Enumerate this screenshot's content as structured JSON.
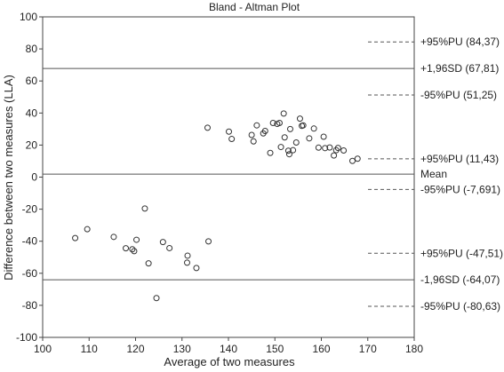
{
  "chart_data": {
    "type": "scatter",
    "title": "Bland - Altman Plot",
    "xlabel": "Average of two measures",
    "ylabel": "Difference between two measures (LLA)",
    "xlim": [
      100,
      180
    ],
    "ylim": [
      -100,
      100
    ],
    "xticks": [
      "100",
      "110",
      "120",
      "130",
      "140",
      "150",
      "160",
      "170",
      "180"
    ],
    "yticks": [
      "-100",
      "-80",
      "-60",
      "-40",
      "-20",
      "0",
      "20",
      "40",
      "60",
      "80",
      "100"
    ],
    "grid": false,
    "reference_lines": [
      {
        "label": "+95%PU (84,37)",
        "y": 84.37,
        "style": "dashed",
        "extent": "right"
      },
      {
        "label": "+1,96SD (67,81)",
        "y": 67.81,
        "style": "solid",
        "extent": "full"
      },
      {
        "label": "-95%PU (51,25)",
        "y": 51.25,
        "style": "dashed",
        "extent": "right"
      },
      {
        "label": "+95%PU (11,43)",
        "y": 11.43,
        "style": "dashed",
        "extent": "right"
      },
      {
        "label": "Mean",
        "y": 1.87,
        "style": "solid",
        "extent": "full"
      },
      {
        "label": "-95%PU (-7,691)",
        "y": -7.691,
        "style": "dashed",
        "extent": "right"
      },
      {
        "label": "+95%PU (-47,51)",
        "y": -47.51,
        "style": "dashed",
        "extent": "right"
      },
      {
        "label": "-1,96SD (-64,07)",
        "y": -64.07,
        "style": "solid",
        "extent": "full"
      },
      {
        "label": "-95%PU (-80,63)",
        "y": -80.63,
        "style": "dashed",
        "extent": "right"
      }
    ],
    "series": [
      {
        "marker": "open-circle",
        "points": [
          [
            107,
            -38
          ],
          [
            109.6,
            -32.5
          ],
          [
            115.3,
            -37.3
          ],
          [
            117.9,
            -44.4
          ],
          [
            119.3,
            -45
          ],
          [
            119.7,
            -46.2
          ],
          [
            120.2,
            -39.1
          ],
          [
            122,
            -19.6
          ],
          [
            122.8,
            -53.8
          ],
          [
            124.5,
            -75.5
          ],
          [
            125.9,
            -40.5
          ],
          [
            127.3,
            -44.3
          ],
          [
            131.1,
            -53.4
          ],
          [
            131.2,
            -49
          ],
          [
            133.1,
            -56.7
          ],
          [
            135.5,
            30.8
          ],
          [
            135.7,
            -40.1
          ],
          [
            140.1,
            28.4
          ],
          [
            140.7,
            23.8
          ],
          [
            145,
            26.3
          ],
          [
            145.4,
            22.3
          ],
          [
            146.1,
            32.3
          ],
          [
            147.5,
            27.3
          ],
          [
            147.9,
            28.8
          ],
          [
            149,
            15.1
          ],
          [
            149.6,
            33.8
          ],
          [
            150.5,
            33.2
          ],
          [
            151,
            33.8
          ],
          [
            151.3,
            18.8
          ],
          [
            151.9,
            39.7
          ],
          [
            152.1,
            24.8
          ],
          [
            152.9,
            16.5
          ],
          [
            153.1,
            14.3
          ],
          [
            153.3,
            30
          ],
          [
            153.9,
            16.8
          ],
          [
            154.6,
            21.6
          ],
          [
            155.4,
            36.5
          ],
          [
            155.8,
            32
          ],
          [
            156.1,
            32.3
          ],
          [
            157.4,
            24.2
          ],
          [
            158.4,
            30.3
          ],
          [
            159.4,
            18.4
          ],
          [
            160.5,
            25.2
          ],
          [
            160.8,
            18.1
          ],
          [
            161.8,
            18.5
          ],
          [
            162.7,
            13.5
          ],
          [
            163.2,
            16.8
          ],
          [
            163.6,
            18.2
          ],
          [
            164.8,
            16.6
          ],
          [
            166.7,
            10.1
          ],
          [
            167.8,
            11.5
          ]
        ]
      }
    ]
  }
}
